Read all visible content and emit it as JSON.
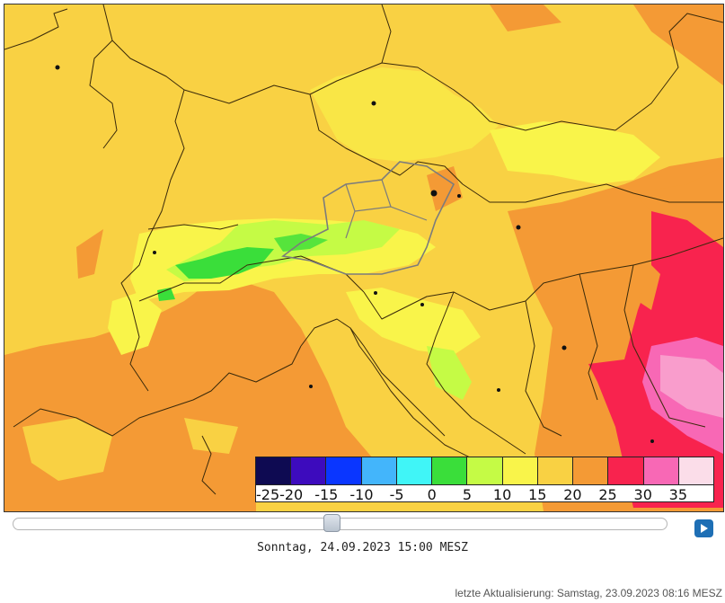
{
  "map": {
    "timestamp": "Sonntag, 24.09.2023 15:00 MESZ",
    "last_update": "letzte Aktualisierung: Samstag, 23.09.2023 08:16 MESZ",
    "legend": {
      "colors": [
        "#0e0a52",
        "#3d0bbd",
        "#0a36ff",
        "#43b5fb",
        "#40f5f7",
        "#3ade3a",
        "#c5fb45",
        "#f9f44a",
        "#f9d143",
        "#f49a35",
        "#f8234e",
        "#f868b5",
        "#fbdde9"
      ],
      "labels": [
        "-25",
        "-20",
        "-15",
        "-10",
        "-5",
        "0",
        "5",
        "10",
        "15",
        "20",
        "25",
        "30",
        "35"
      ]
    },
    "slider": {
      "position": 0.49
    },
    "play_icon": "play-icon"
  }
}
